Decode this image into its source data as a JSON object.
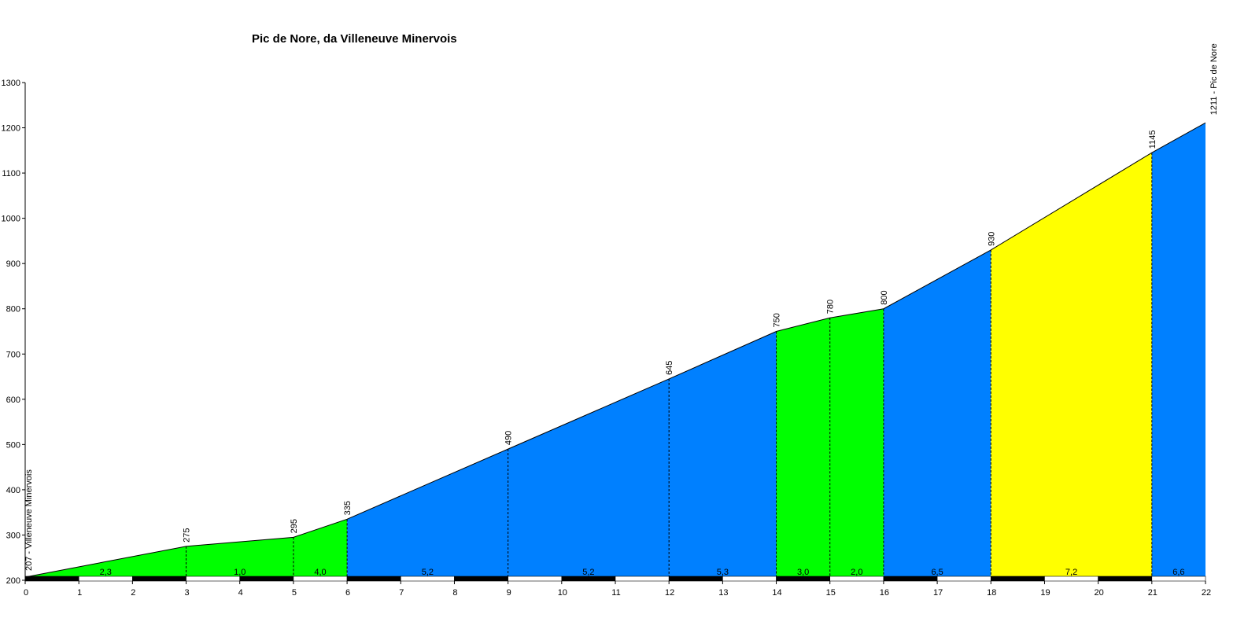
{
  "chart_data": {
    "type": "area",
    "title": "Pic de Nore, da  Villeneuve Minervois",
    "xlabel": "",
    "ylabel": "",
    "xlim": [
      0,
      22
    ],
    "ylim": [
      200,
      1300
    ],
    "x_ticks": [
      0,
      1,
      2,
      3,
      4,
      5,
      6,
      7,
      8,
      9,
      10,
      11,
      12,
      13,
      14,
      15,
      16,
      17,
      18,
      19,
      20,
      21,
      22
    ],
    "y_ticks": [
      200,
      300,
      400,
      500,
      600,
      700,
      800,
      900,
      1000,
      1100,
      1200,
      1300
    ],
    "grid": false,
    "legend": "none",
    "profile": [
      {
        "x": 0,
        "y": 207,
        "label": "207 - Villeneuve Minervois"
      },
      {
        "x": 3,
        "y": 275,
        "label": "275"
      },
      {
        "x": 5,
        "y": 295,
        "label": "295"
      },
      {
        "x": 6,
        "y": 335,
        "label": "335"
      },
      {
        "x": 9,
        "y": 490,
        "label": "490"
      },
      {
        "x": 12,
        "y": 645,
        "label": "645"
      },
      {
        "x": 14,
        "y": 750,
        "label": "750"
      },
      {
        "x": 15,
        "y": 780,
        "label": "780"
      },
      {
        "x": 16,
        "y": 800,
        "label": "800"
      },
      {
        "x": 18,
        "y": 930,
        "label": "930"
      },
      {
        "x": 21,
        "y": 1145,
        "label": "1145"
      },
      {
        "x": 22,
        "y": 1211,
        "label": "1211 - Pic de Nore"
      }
    ],
    "segments": [
      {
        "from": 0,
        "to": 3,
        "gradient": "2,3",
        "color": "#00ff00"
      },
      {
        "from": 3,
        "to": 5,
        "gradient": "1,0",
        "color": "#00ff00"
      },
      {
        "from": 5,
        "to": 6,
        "gradient": "4,0",
        "color": "#00ff00"
      },
      {
        "from": 6,
        "to": 9,
        "gradient": "5,2",
        "color": "#0080ff"
      },
      {
        "from": 9,
        "to": 12,
        "gradient": "5,2",
        "color": "#0080ff"
      },
      {
        "from": 12,
        "to": 14,
        "gradient": "5,3",
        "color": "#0080ff"
      },
      {
        "from": 14,
        "to": 15,
        "gradient": "3,0",
        "color": "#00ff00"
      },
      {
        "from": 15,
        "to": 16,
        "gradient": "2,0",
        "color": "#00ff00"
      },
      {
        "from": 16,
        "to": 18,
        "gradient": "6,5",
        "color": "#0080ff"
      },
      {
        "from": 18,
        "to": 21,
        "gradient": "7,2",
        "color": "#ffff00"
      },
      {
        "from": 21,
        "to": 22,
        "gradient": "6,6",
        "color": "#0080ff"
      }
    ]
  }
}
